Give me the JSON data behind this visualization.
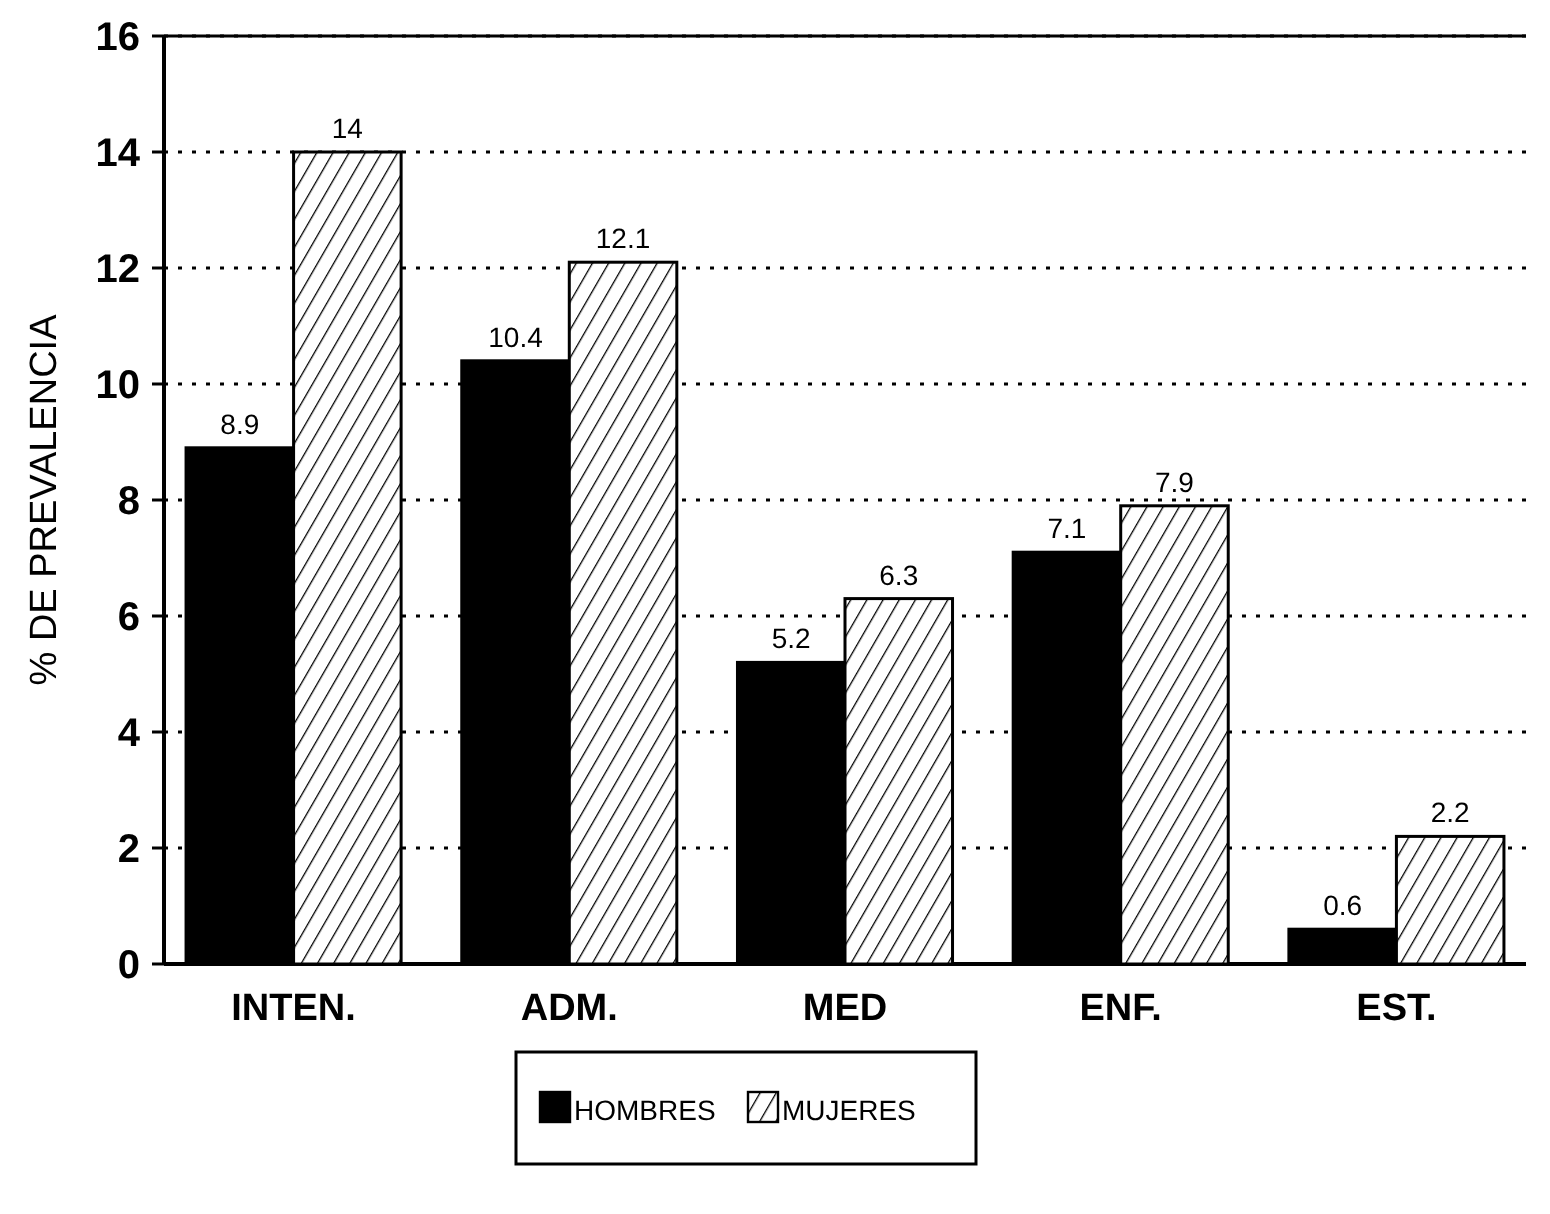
{
  "chart_data": {
    "type": "bar",
    "ylabel": "% DE PREVALENCIA",
    "categories": [
      "INTEN.",
      "ADM.",
      "MED",
      "ENF.",
      "EST."
    ],
    "series": [
      {
        "name": "HOMBRES",
        "color": "#000000",
        "values": [
          8.9,
          10.4,
          5.2,
          7.1,
          0.6
        ]
      },
      {
        "name": "MUJERES",
        "color": "#000000",
        "values": [
          14,
          12.1,
          6.3,
          7.9,
          2.2
        ]
      }
    ],
    "ylim": [
      0,
      16
    ],
    "yticks": [
      0,
      2,
      4,
      6,
      8,
      10,
      12,
      14,
      16
    ],
    "grid": "y",
    "data_labels": true,
    "legend": "bottom"
  }
}
